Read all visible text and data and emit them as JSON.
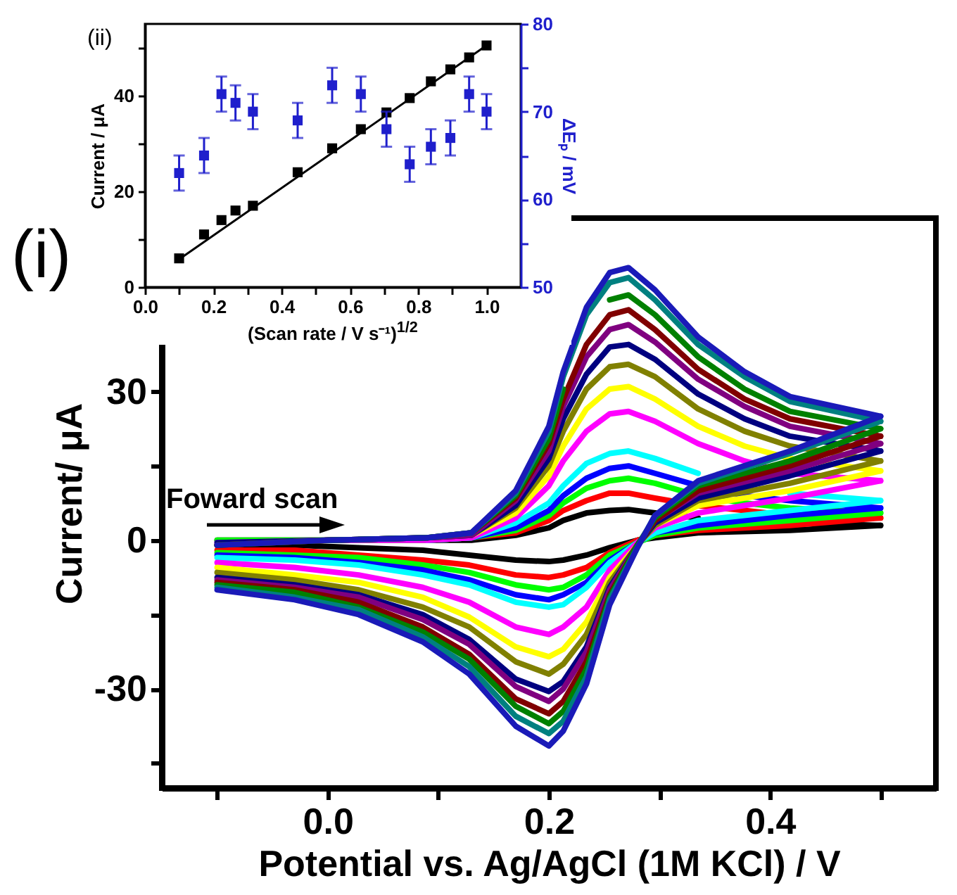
{
  "chart_data": [
    {
      "type": "line",
      "xlabel": "Potential vs. Ag/AgCl (1M KCl) / V",
      "ylabel": "Current/ μA",
      "xlim": [
        -0.15,
        0.55
      ],
      "ylim": [
        -50,
        65
      ],
      "xticks": [
        {
          "value": -0.1,
          "label": null
        },
        {
          "value": 0,
          "label": "0.0"
        },
        {
          "value": 0.1,
          "label": null
        },
        0.2,
        {
          "value": 0.3,
          "label": null
        },
        0.4,
        {
          "value": 0.5,
          "label": null
        }
      ],
      "yticks": [
        {
          "value": -45,
          "label": null
        },
        -30,
        {
          "value": -15,
          "label": null
        },
        0,
        {
          "value": 15,
          "label": null
        },
        30
      ],
      "annotations": [
        "(i)",
        "Foward scan"
      ],
      "x": [
        -0.1,
        0,
        0.09,
        0.13,
        0.17,
        0.2,
        0.213,
        0.234,
        0.255,
        0.272,
        0.296,
        0.335,
        0.377,
        0.418,
        0.5
      ],
      "series": [
        {
          "color": "#000000",
          "values": [
            0,
            0,
            0,
            0,
            1,
            2.5,
            4,
            5.5,
            6,
            6.2,
            5.5,
            4.5,
            null,
            3.5,
            3
          ]
        },
        {
          "color": "#000000",
          "x": [
            -0.1,
            -0.03,
            0.028,
            0.086,
            0.128,
            0.17,
            0.2,
            0.213,
            0.234,
            0.255,
            0.28,
            0.296,
            0.335,
            0.418,
            0.5
          ],
          "values": [
            -1,
            -1,
            -1.5,
            -2,
            -3,
            -4,
            -4.3,
            -4,
            -3,
            -1.5,
            0,
            0.5,
            1.5,
            2,
            3
          ]
        },
        {
          "color": "#ff0000",
          "values": [
            null,
            null,
            0,
            0.5,
            1.5,
            4,
            6,
            8,
            9.5,
            9.5,
            8.5,
            7,
            6,
            5,
            4.5
          ]
        },
        {
          "color": "#ff0000",
          "x": [
            -0.1,
            -0.03,
            0.028,
            0.086,
            0.128,
            0.17,
            0.2,
            0.213,
            0.234,
            0.255,
            0.28,
            0.296,
            0.335,
            0.418,
            0.5
          ],
          "values": [
            -2,
            -2,
            -3,
            -4,
            -5,
            -7,
            -7.5,
            -7,
            -5.5,
            -2.5,
            0,
            1,
            2,
            3,
            4.5
          ]
        },
        {
          "color": "#00ff00",
          "values": [
            0,
            0,
            0,
            0.5,
            2,
            5,
            7.5,
            10.5,
            12,
            12.5,
            11.5,
            9,
            7.5,
            6.5,
            5.5
          ]
        },
        {
          "color": "#00ff00",
          "x": [
            -0.1,
            -0.03,
            0.028,
            0.086,
            0.128,
            0.17,
            0.2,
            0.213,
            0.234,
            0.255,
            0.28,
            0.296,
            0.335,
            0.418,
            0.5
          ],
          "values": [
            -2.5,
            -3,
            -3.5,
            -5,
            -6.5,
            -9,
            -10,
            -9.5,
            -7,
            -3,
            -0.5,
            1,
            2.5,
            4,
            5.5
          ]
        },
        {
          "color": "#0000ff",
          "values": [
            null,
            null,
            0,
            0.5,
            2.5,
            6,
            9,
            12.5,
            14.5,
            15,
            13.5,
            11,
            9,
            8,
            6.5
          ]
        },
        {
          "color": "#0000ff",
          "x": [
            -0.1,
            -0.03,
            0.028,
            0.086,
            0.128,
            0.17,
            0.2,
            0.213,
            0.234,
            0.255,
            0.28,
            0.296,
            0.335,
            0.418,
            0.5
          ],
          "values": [
            -3,
            -3.5,
            -4.5,
            -6,
            -8,
            -11,
            -12,
            -11,
            -8.5,
            -4,
            -0.5,
            1.5,
            3,
            5,
            6.5
          ]
        },
        {
          "color": "#00ffff",
          "values": [
            null,
            null,
            0,
            0.5,
            3.5,
            7.5,
            11,
            15.5,
            17.5,
            18,
            16.5,
            13.5,
            null,
            9.5,
            8
          ]
        },
        {
          "color": "#00ffff",
          "x": [
            -0.1,
            -0.03,
            0.028,
            0.086,
            0.128,
            0.17,
            0.2,
            0.213,
            0.234,
            0.255,
            0.28,
            0.296,
            0.335,
            0.418,
            0.5
          ],
          "values": [
            -3.5,
            -4,
            -5,
            -7,
            -9,
            -12.5,
            -13.5,
            -13,
            -9.5,
            -4.5,
            -0.5,
            1.5,
            4,
            6,
            8
          ]
        },
        {
          "color": "#ff00ff",
          "values": [
            -0.5,
            0,
            0,
            0.5,
            4.5,
            11,
            16,
            22,
            25.5,
            26,
            24,
            19.5,
            16,
            13.5,
            12
          ]
        },
        {
          "color": "#ff00ff",
          "x": [
            -0.1,
            -0.03,
            0.028,
            0.086,
            0.128,
            0.17,
            0.2,
            0.213,
            0.234,
            0.255,
            0.28,
            0.296,
            0.335,
            0.418,
            0.5
          ],
          "values": [
            -4.5,
            -5.5,
            -7,
            -9.5,
            -12.5,
            -17.5,
            -19,
            -17.5,
            -13.5,
            -6,
            -0.5,
            2.5,
            5.5,
            8.5,
            12
          ]
        },
        {
          "color": "#ffff00",
          "values": [
            null,
            null,
            null,
            1,
            5.5,
            13,
            19,
            26.5,
            30.5,
            31,
            28.5,
            23,
            19,
            16.5,
            14
          ]
        },
        {
          "color": "#ffff00",
          "x": [
            -0.1,
            -0.03,
            0.028,
            0.086,
            0.128,
            0.17,
            0.2,
            0.213,
            0.234,
            0.255,
            0.28,
            0.296,
            0.335,
            0.418,
            0.5
          ],
          "values": [
            -5.5,
            -7,
            -8.5,
            -11.5,
            -15.5,
            -21.5,
            -23.5,
            -22,
            -16.5,
            -7.5,
            -1,
            3,
            7,
            10,
            14
          ]
        },
        {
          "color": "#808000",
          "values": [
            null,
            null,
            0.5,
            1,
            6.5,
            15,
            22,
            30.5,
            35,
            35.5,
            33,
            26.5,
            22,
            19,
            16
          ]
        },
        {
          "color": "#808000",
          "x": [
            -0.1,
            -0.03,
            0.028,
            0.086,
            0.128,
            0.17,
            0.2,
            0.213,
            0.234,
            0.255,
            0.28,
            0.296,
            0.335,
            0.418,
            0.5
          ],
          "values": [
            -6.5,
            -8,
            -10,
            -13.5,
            -17.5,
            -24.5,
            -27,
            -25,
            -19,
            -8.5,
            -1,
            3,
            8,
            11.5,
            16
          ]
        },
        {
          "color": "#000080",
          "values": [
            -0.5,
            0,
            0.5,
            1,
            7,
            16.5,
            24.5,
            33.5,
            39,
            39.5,
            36.5,
            29.5,
            24.5,
            21,
            18
          ]
        },
        {
          "color": "#000080",
          "x": [
            -0.1,
            -0.03,
            0.028,
            0.086,
            0.128,
            0.17,
            0.2,
            0.213,
            0.234,
            0.255,
            0.28,
            0.296,
            0.335,
            0.418,
            0.5
          ],
          "values": [
            -7.5,
            -9,
            -11,
            -15,
            -20,
            -28,
            -30.5,
            -28.5,
            -21.5,
            -9.5,
            -1,
            3.5,
            8.5,
            13,
            18
          ]
        },
        {
          "color": "#800080",
          "values": [
            -1,
            0,
            0.5,
            1,
            8,
            18,
            27,
            37,
            42.5,
            43.5,
            40,
            32.5,
            27,
            23,
            19.5
          ]
        },
        {
          "color": "#800080",
          "x": [
            -0.1,
            -0.03,
            0.028,
            0.086,
            0.128,
            0.17,
            0.2,
            0.213,
            0.234,
            0.255,
            0.28,
            0.296,
            0.335,
            0.418,
            0.5
          ],
          "values": [
            -8,
            -9.5,
            -11.5,
            -16,
            -21,
            -29.5,
            -32.5,
            -30,
            -22.5,
            -10,
            -1,
            4,
            9.5,
            14,
            19.5
          ]
        },
        {
          "color": "#800000",
          "values": [
            -1,
            0,
            0.5,
            1.5,
            8.5,
            19.5,
            28.5,
            39.5,
            45.5,
            46.5,
            42.5,
            34.5,
            28.5,
            24.5,
            21
          ]
        },
        {
          "color": "#800000",
          "x": [
            -0.1,
            -0.03,
            0.028,
            0.086,
            0.128,
            0.17,
            0.2,
            0.213,
            0.234,
            0.255,
            0.28,
            0.296,
            0.335,
            0.418,
            0.5
          ],
          "values": [
            -8.5,
            -10,
            -12.5,
            -17.5,
            -23,
            -32,
            -35,
            -32.5,
            -24.5,
            -11,
            -1,
            4,
            10,
            15,
            21
          ]
        },
        {
          "color": "#008000",
          "values": [
            -1,
            0,
            0.5,
            1.5,
            9,
            20.5,
            30.5,
            null,
            48.5,
            49.5,
            45.5,
            37,
            30.5,
            26,
            22.5
          ]
        },
        {
          "color": "#008000",
          "x": [
            -0.1,
            -0.03,
            0.028,
            0.086,
            0.128,
            0.17,
            0.2,
            0.213,
            0.234,
            0.255,
            0.28,
            0.296,
            0.335,
            0.418,
            0.5
          ],
          "values": [
            -9,
            -10.5,
            -13.5,
            -18.5,
            -24,
            -33.5,
            -37,
            -34.5,
            -26,
            -11.5,
            -1,
            4.5,
            11,
            16,
            22.5
          ]
        },
        {
          "color": "#008080",
          "values": [
            null,
            0,
            0.5,
            1.5,
            9.5,
            22,
            33,
            45.5,
            52,
            53,
            48.5,
            39.5,
            33,
            28,
            24
          ]
        },
        {
          "color": "#008080",
          "x": [
            -0.1,
            -0.03,
            0.028,
            0.086,
            0.128,
            0.17,
            0.2,
            0.213,
            0.234,
            0.255,
            0.28,
            0.296,
            0.335,
            0.418,
            0.5
          ],
          "values": [
            -9.5,
            -11.5,
            -14,
            -19.5,
            -25.5,
            -35.5,
            -39,
            -36.5,
            -27.5,
            -12,
            -1.5,
            5,
            11.5,
            17.5,
            24
          ]
        },
        {
          "color": "#1a1ab8",
          "values": [
            -1,
            0,
            0.5,
            1.5,
            10,
            23,
            34,
            47,
            54,
            55,
            50.5,
            41,
            34,
            29,
            25
          ]
        },
        {
          "color": "#1a1ab8",
          "x": [
            -0.1,
            -0.03,
            0.028,
            0.086,
            0.128,
            0.17,
            0.2,
            0.213,
            0.234,
            0.255,
            0.28,
            0.296,
            0.335,
            0.418,
            0.5
          ],
          "values": [
            -10,
            -12,
            -15,
            -20.5,
            -27,
            -37.5,
            -41.5,
            -38.5,
            -29,
            -13,
            -1.5,
            5,
            12,
            18,
            25
          ]
        }
      ]
    },
    {
      "type": "scatter",
      "xlabel": "(Scan rate / V s⁻¹)$^{1/2}$",
      "ylabel": "Current / μA",
      "y2label": "ΔEₚ / mV",
      "xlim": [
        0,
        1.1
      ],
      "ylim": [
        0,
        55
      ],
      "y2lim": [
        50,
        80
      ],
      "xticks": [
        {
          "value": 0,
          "label": "0.0"
        },
        {
          "value": 0.1,
          "label": null
        },
        0.2,
        {
          "value": 0.3,
          "label": null
        },
        0.4,
        {
          "value": 0.5,
          "label": null
        },
        0.6,
        {
          "value": 0.7,
          "label": null
        },
        0.8,
        {
          "value": 0.9,
          "label": null
        },
        {
          "value": 1,
          "label": "1.0"
        }
      ],
      "yticks": [
        0,
        {
          "value": 10,
          "label": null
        },
        20,
        {
          "value": 30,
          "label": null
        },
        40,
        {
          "value": 50,
          "label": null
        }
      ],
      "y2ticks": [
        50,
        {
          "value": 55,
          "label": null
        },
        60,
        {
          "value": 65,
          "label": null
        },
        70,
        {
          "value": 75,
          "label": null
        },
        80
      ],
      "annotations": [
        "(ii)"
      ],
      "x": [
        0.1,
        0.173,
        0.224,
        0.265,
        0.316,
        0.447,
        0.548,
        0.632,
        0.707,
        0.775,
        0.837,
        0.894,
        0.949,
        1.0
      ],
      "series": [
        {
          "type": "line",
          "color": "#000000",
          "x": [
            0.1,
            1.0
          ],
          "values": [
            5.8,
            50.5
          ]
        },
        {
          "marker": "square",
          "color": "#000000",
          "values": [
            6,
            11,
            14,
            16,
            17,
            24,
            29,
            33,
            36.5,
            39.5,
            43,
            45.5,
            48,
            50.5
          ]
        },
        {
          "marker": "square",
          "axis": "y2",
          "color": "#1f1fcc",
          "values": [
            63,
            65,
            72,
            71,
            70,
            69,
            73,
            72,
            68,
            64,
            66,
            67,
            72,
            70
          ],
          "errors": [
            2,
            2,
            2,
            2,
            2,
            2,
            2,
            2,
            2,
            2,
            2,
            2,
            2,
            2
          ]
        }
      ]
    }
  ]
}
